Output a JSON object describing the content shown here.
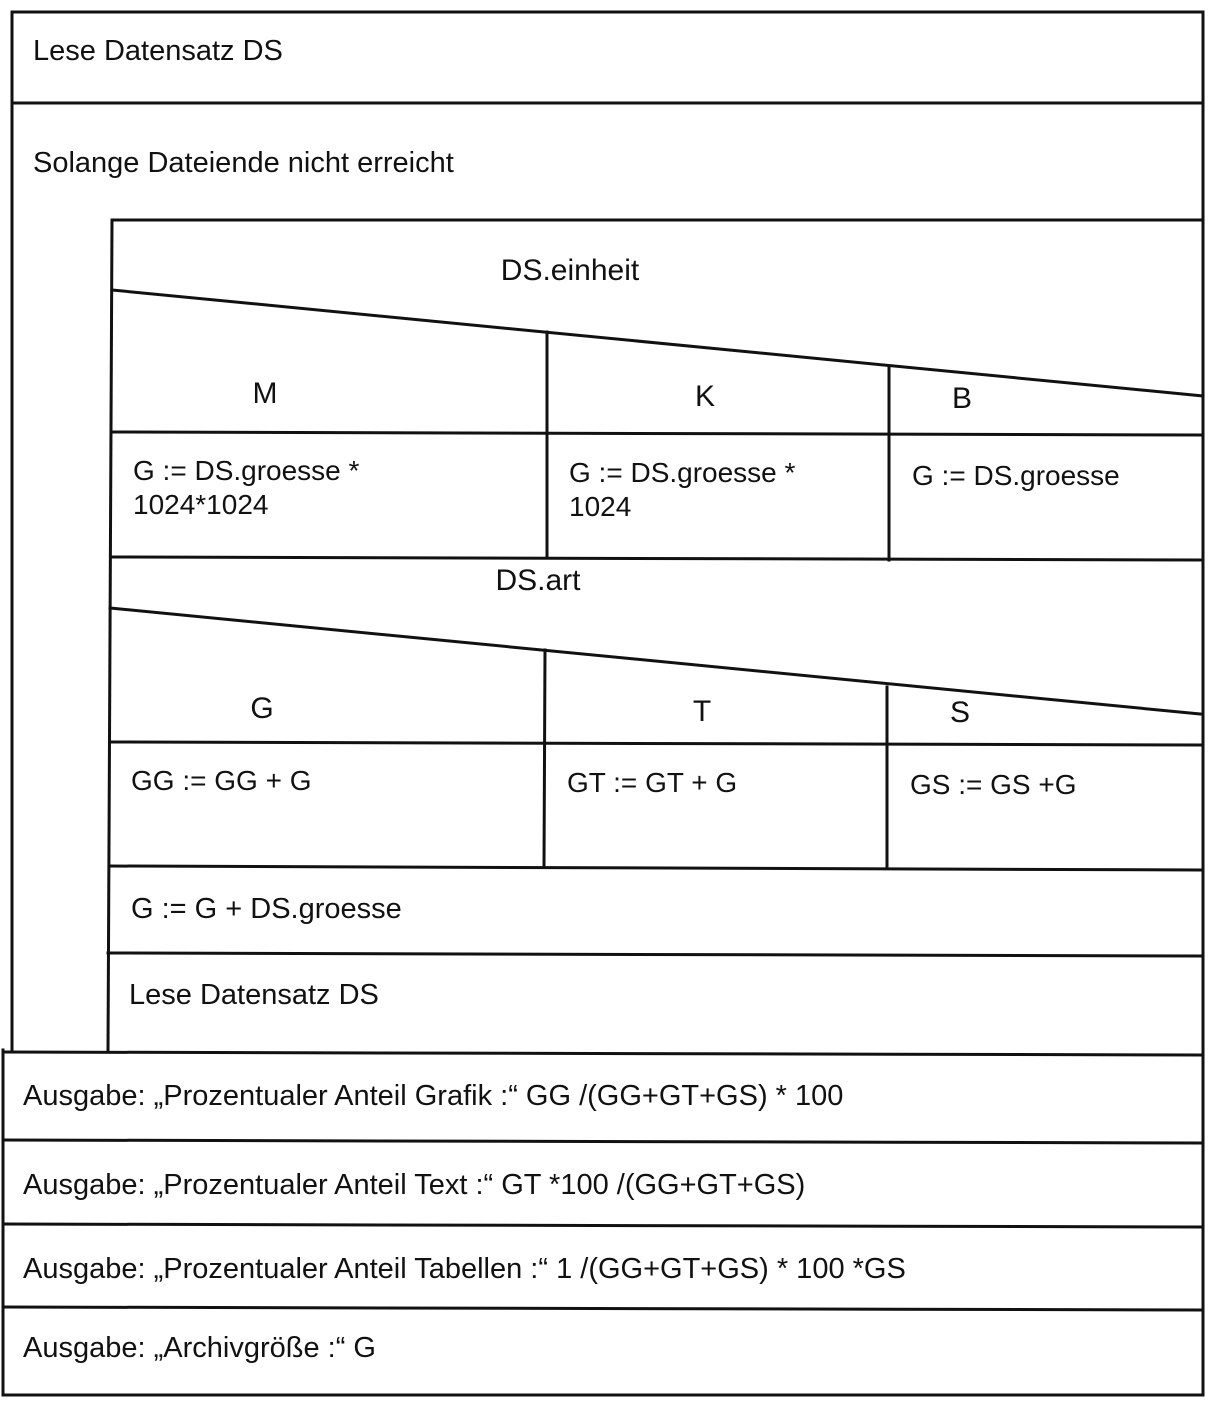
{
  "read_first": "Lese Datensatz DS",
  "loop": {
    "condition": "Solange Dateiende nicht erreicht",
    "switch_einheit": {
      "expression": "DS.einheit",
      "cases": [
        {
          "label": "M",
          "action_lines": [
            "G := DS.groesse *",
            "1024*1024"
          ]
        },
        {
          "label": "K",
          "action_lines": [
            "G := DS.groesse *",
            "1024"
          ]
        },
        {
          "label": "B",
          "action_lines": [
            "G := DS.groesse"
          ]
        }
      ]
    },
    "switch_art": {
      "expression": "DS.art",
      "cases": [
        {
          "label": "G",
          "action": "GG := GG + G"
        },
        {
          "label": "T",
          "action": "GT := GT + G"
        },
        {
          "label": "S",
          "action": "GS := GS +G"
        }
      ]
    },
    "sum_step": "G := G + DS.groesse",
    "read_next": "Lese Datensatz DS"
  },
  "outputs": [
    "Ausgabe: „Prozentualer Anteil Grafik :“  GG /(GG+GT+GS) * 100",
    "Ausgabe: „Prozentualer Anteil Text :“  GT *100 /(GG+GT+GS)",
    "Ausgabe: „Prozentualer Anteil Tabellen :“  1 /(GG+GT+GS) * 100 *GS",
    "Ausgabe: „Archivgröße :“  G"
  ]
}
